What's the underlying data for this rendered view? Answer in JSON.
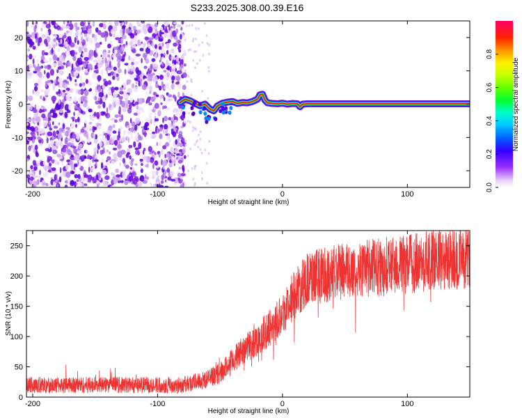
{
  "title": "S233.2025.308.00.39.E16",
  "chart_data": [
    {
      "type": "heatmap",
      "name": "spectrogram",
      "xlabel": "Height of straight line (km)",
      "ylabel": "Frequency (Hz)",
      "xlim": [
        -205,
        150
      ],
      "ylim": [
        -25,
        25
      ],
      "xticks": [
        -200,
        -100,
        0,
        100
      ],
      "yticks": [
        -20,
        -10,
        0,
        10,
        20
      ],
      "noise_region_x": [
        -205,
        -78
      ],
      "signal_trace": {
        "x": [
          -82,
          -78,
          -74,
          -70,
          -66,
          -62,
          -58,
          -55,
          -52,
          -48,
          -44,
          -40,
          -36,
          -32,
          -28,
          -24,
          -20,
          -18,
          -16,
          -14,
          -12,
          -8,
          -4,
          0,
          4,
          8,
          12,
          14,
          16,
          20,
          150
        ],
        "y": [
          0.5,
          1.5,
          1.0,
          0.2,
          -0.5,
          0.0,
          -1.5,
          -2.0,
          -0.5,
          0.3,
          0.6,
          0.8,
          0.2,
          0.5,
          0.4,
          0.8,
          1.5,
          2.8,
          3.0,
          1.2,
          0.4,
          0.2,
          0.1,
          0.3,
          0.0,
          0.2,
          0.1,
          -0.8,
          0.0,
          0.1,
          0.1
        ]
      },
      "colorbar": {
        "label": "Normalized spectral amplitude",
        "range": [
          0,
          1
        ],
        "ticks": [
          0.0,
          0.2,
          0.4,
          0.6,
          0.8
        ]
      }
    },
    {
      "type": "line",
      "name": "snr",
      "xlabel": "Height of straight line (km)",
      "ylabel": "SNR (10 * v/v)",
      "xlim": [
        -205,
        150
      ],
      "ylim": [
        0,
        275
      ],
      "xticks": [
        -200,
        -100,
        0,
        100
      ],
      "yticks": [
        0,
        50,
        100,
        150,
        200,
        250
      ],
      "color": "#ee3333",
      "trend": {
        "x": [
          -205,
          -150,
          -100,
          -80,
          -70,
          -60,
          -50,
          -40,
          -30,
          -20,
          -10,
          0,
          10,
          20,
          30,
          40,
          60,
          80,
          100,
          120,
          150
        ],
        "y": [
          20,
          20,
          20,
          20,
          25,
          30,
          40,
          60,
          80,
          95,
          115,
          140,
          170,
          195,
          200,
          205,
          210,
          215,
          220,
          225,
          230
        ]
      }
    }
  ]
}
